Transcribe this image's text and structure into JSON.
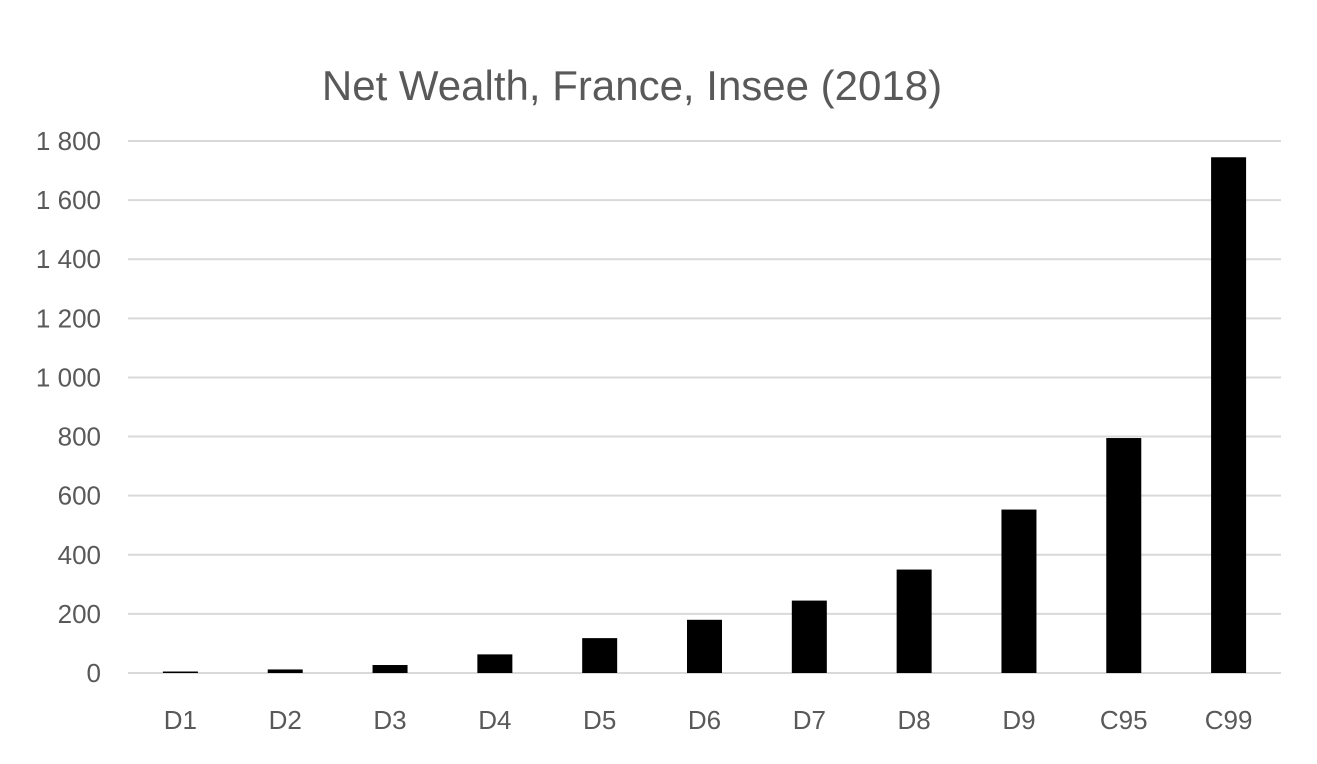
{
  "chart_data": {
    "type": "bar",
    "title": "Net Wealth, France, Insee (2018)",
    "xlabel": "",
    "ylabel": "",
    "categories": [
      "D1",
      "D2",
      "D3",
      "D4",
      "D5",
      "D6",
      "D7",
      "D8",
      "D9",
      "C95",
      "C99"
    ],
    "values": [
      5,
      12,
      27,
      63,
      118,
      180,
      245,
      350,
      553,
      795,
      1745
    ],
    "ylim": [
      0,
      1800
    ],
    "yticks": [
      0,
      200,
      400,
      600,
      800,
      1000,
      1200,
      1400,
      1600,
      1800
    ],
    "ytick_labels": [
      "0",
      "200",
      "400",
      "600",
      "800",
      "1 000",
      "1 200",
      "1 400",
      "1 600",
      "1 800"
    ],
    "grid": true,
    "legend": "none",
    "bar_color": "#000000"
  }
}
